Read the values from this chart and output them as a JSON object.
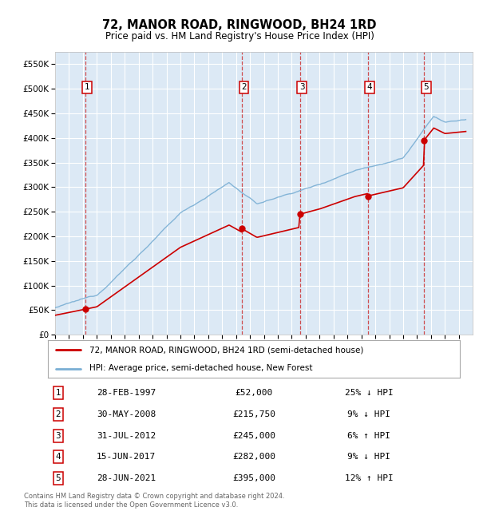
{
  "title": "72, MANOR ROAD, RINGWOOD, BH24 1RD",
  "subtitle": "Price paid vs. HM Land Registry's House Price Index (HPI)",
  "ylabel_ticks": [
    "£0",
    "£50K",
    "£100K",
    "£150K",
    "£200K",
    "£250K",
    "£300K",
    "£350K",
    "£400K",
    "£450K",
    "£500K",
    "£550K"
  ],
  "ytick_values": [
    0,
    50000,
    100000,
    150000,
    200000,
    250000,
    300000,
    350000,
    400000,
    450000,
    500000,
    550000
  ],
  "xmin": 1995.0,
  "xmax": 2025.0,
  "ymin": 0,
  "ymax": 575000,
  "sale_dates": [
    1997.16,
    2008.41,
    2012.58,
    2017.45,
    2021.49
  ],
  "sale_prices": [
    52000,
    215750,
    245000,
    282000,
    395000
  ],
  "sale_labels": [
    "1",
    "2",
    "3",
    "4",
    "5"
  ],
  "vline_color": "#cc3333",
  "sale_marker_color": "#cc0000",
  "legend_label_red": "72, MANOR ROAD, RINGWOOD, BH24 1RD (semi-detached house)",
  "legend_label_blue": "HPI: Average price, semi-detached house, New Forest",
  "table_rows": [
    [
      "1",
      "28-FEB-1997",
      "£52,000",
      "25% ↓ HPI"
    ],
    [
      "2",
      "30-MAY-2008",
      "£215,750",
      "9% ↓ HPI"
    ],
    [
      "3",
      "31-JUL-2012",
      "£245,000",
      "6% ↑ HPI"
    ],
    [
      "4",
      "15-JUN-2017",
      "£282,000",
      "9% ↓ HPI"
    ],
    [
      "5",
      "28-JUN-2021",
      "£395,000",
      "12% ↑ HPI"
    ]
  ],
  "footnote": "Contains HM Land Registry data © Crown copyright and database right 2024.\nThis data is licensed under the Open Government Licence v3.0.",
  "bg_color": "#dce9f5",
  "grid_color": "#ffffff",
  "red_line_color": "#cc0000",
  "blue_line_color": "#7aafd4"
}
